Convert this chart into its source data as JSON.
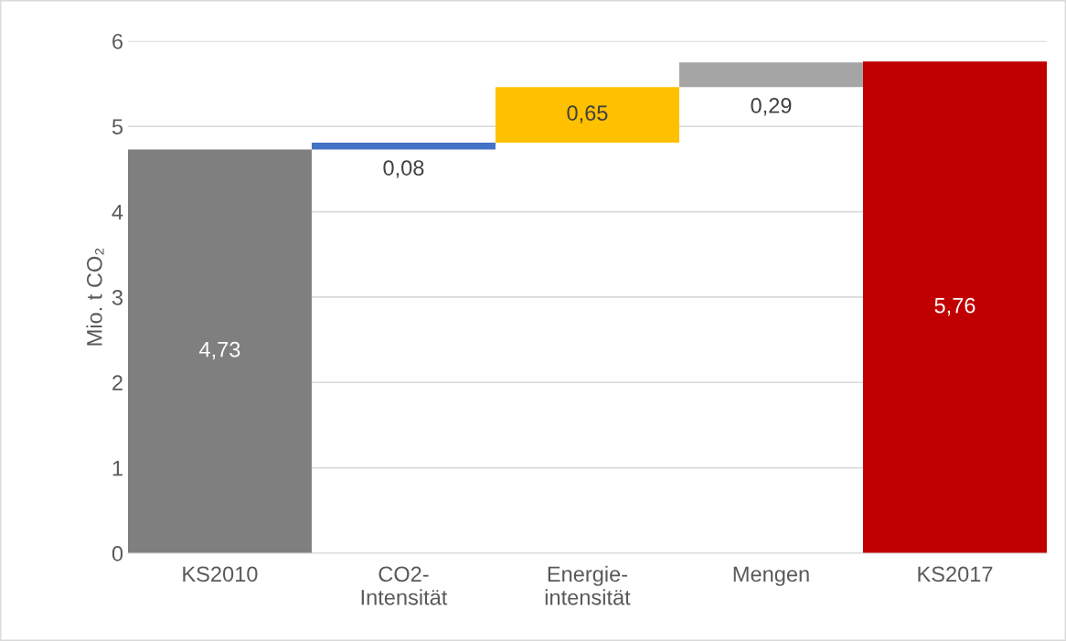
{
  "chart_data": {
    "type": "bar",
    "ylabel": "Mio. t CO₂",
    "categories": [
      "KS2010",
      "CO2-\nIntensität",
      "Energie-\nintensität",
      "Mengen",
      "KS2017"
    ],
    "values": [
      4.73,
      0.08,
      0.65,
      0.29,
      5.76
    ],
    "base": [
      0,
      4.73,
      4.81,
      5.46,
      0
    ],
    "colors": [
      "#7f7f7f",
      "#4472c4",
      "#ffc000",
      "#a5a5a5",
      "#c00000"
    ],
    "value_labels": [
      "4,73",
      "0,08",
      "0,65",
      "0,29",
      "5,76"
    ],
    "ylim": [
      0,
      6
    ],
    "yticks": [
      0,
      1,
      2,
      3,
      4,
      5,
      6
    ],
    "grid": "y",
    "legend": false
  }
}
